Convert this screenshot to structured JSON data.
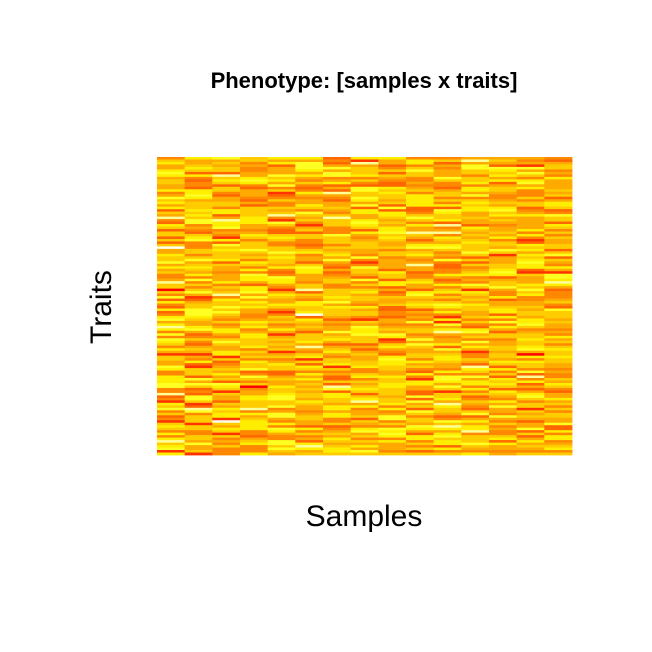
{
  "chart_data": {
    "type": "heatmap",
    "title": "Phenotype: [samples x traits]",
    "xlabel": "Samples",
    "ylabel": "Traits",
    "n_samples": 15,
    "n_traits": 120,
    "colormap": "heat",
    "colors": [
      "#FF0000",
      "#FF3300",
      "#FF6600",
      "#FF8800",
      "#FFAA00",
      "#FFCC00",
      "#FFEE00",
      "#FFFF22",
      "#FFFF99",
      "#FFFFEE"
    ],
    "seed": 7,
    "grid": false,
    "legend": "none"
  }
}
